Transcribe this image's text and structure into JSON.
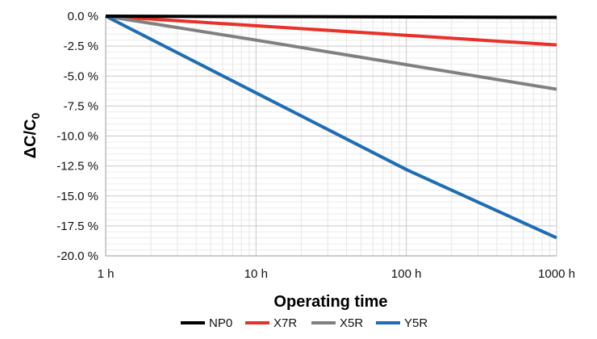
{
  "chart_data": {
    "type": "line",
    "xlabel": "Operating time",
    "ylabel_main": "ΔC/C",
    "ylabel_sub": "0",
    "x_scale": "log",
    "x_ticks": [
      {
        "value": 1,
        "label": "1 h"
      },
      {
        "value": 10,
        "label": "10 h"
      },
      {
        "value": 100,
        "label": "100 h"
      },
      {
        "value": 1000,
        "label": "1000 h"
      }
    ],
    "y_ticks": [
      {
        "value": 0,
        "label": "0.0 %"
      },
      {
        "value": -2.5,
        "label": "-2.5 %"
      },
      {
        "value": -5,
        "label": "-5.0 %"
      },
      {
        "value": -7.5,
        "label": "-7.5 %"
      },
      {
        "value": -10,
        "label": "-10.0 %"
      },
      {
        "value": -12.5,
        "label": "-12.5 %"
      },
      {
        "value": -15,
        "label": "-15.0 %"
      },
      {
        "value": -17.5,
        "label": "-17.5 %"
      },
      {
        "value": -20,
        "label": "-20.0 %"
      }
    ],
    "xlim": [
      1,
      1000
    ],
    "ylim": [
      -20,
      0
    ],
    "grid": true,
    "legend_position": "bottom",
    "series": [
      {
        "name": "NP0",
        "color": "#000000",
        "x": [
          1,
          1000
        ],
        "y": [
          0,
          -0.1
        ]
      },
      {
        "name": "X7R",
        "color": "#e8312a",
        "x": [
          1,
          10,
          100,
          1000
        ],
        "y": [
          0,
          -0.8,
          -1.6,
          -2.4
        ]
      },
      {
        "name": "X5R",
        "color": "#808080",
        "x": [
          1,
          10,
          100,
          1000
        ],
        "y": [
          0,
          -2.0,
          -4.05,
          -6.1
        ]
      },
      {
        "name": "Y5R",
        "color": "#1f6db5",
        "x": [
          1,
          10,
          100,
          1000
        ],
        "y": [
          0,
          -6.4,
          -12.8,
          -18.5
        ]
      }
    ]
  }
}
